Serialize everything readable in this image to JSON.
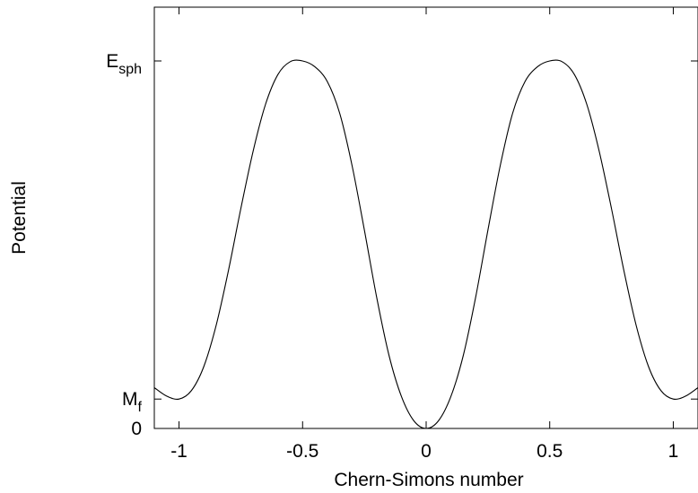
{
  "chart_data": {
    "type": "line",
    "title": "",
    "xlabel": "Chern-Simons number",
    "ylabel": "Potential",
    "xlim": [
      -1.1,
      1.1
    ],
    "x_ticks": [
      {
        "value": -1,
        "label": "-1"
      },
      {
        "value": -0.5,
        "label": "-0.5"
      },
      {
        "value": 0,
        "label": "0"
      },
      {
        "value": 0.5,
        "label": "0.5"
      },
      {
        "value": 1,
        "label": "1"
      }
    ],
    "y_ticks": [
      {
        "value": 0,
        "base": "0",
        "sub": ""
      },
      {
        "value": 0.08,
        "base": "M",
        "sub": "f"
      },
      {
        "value": 1,
        "base": "E",
        "sub": "sph"
      }
    ],
    "ylim": [
      0,
      1.15
    ],
    "grid": false,
    "legend": "none",
    "series": [
      {
        "x": [
          -1.1,
          -1.05,
          -1.0,
          -0.95,
          -0.9,
          -0.85,
          -0.8,
          -0.75,
          -0.7,
          -0.65,
          -0.6,
          -0.55,
          -0.5,
          -0.45,
          -0.4,
          -0.35,
          -0.3,
          -0.25,
          -0.2,
          -0.15,
          -0.1,
          -0.05,
          0.0,
          0.05,
          0.1,
          0.15,
          0.2,
          0.25,
          0.3,
          0.35,
          0.4,
          0.45,
          0.5,
          0.55,
          0.6,
          0.65,
          0.7,
          0.75,
          0.8,
          0.85,
          0.9,
          0.95,
          1.0,
          1.05,
          1.1
        ],
        "y": [
          0.111,
          0.088,
          0.08,
          0.103,
          0.168,
          0.28,
          0.43,
          0.598,
          0.755,
          0.882,
          0.963,
          0.998,
          1.0,
          0.984,
          0.944,
          0.858,
          0.716,
          0.54,
          0.356,
          0.198,
          0.087,
          0.021,
          0.0,
          0.021,
          0.087,
          0.198,
          0.356,
          0.54,
          0.716,
          0.858,
          0.944,
          0.984,
          1.0,
          0.998,
          0.963,
          0.882,
          0.755,
          0.598,
          0.43,
          0.28,
          0.168,
          0.103,
          0.08,
          0.088,
          0.111
        ]
      }
    ]
  }
}
